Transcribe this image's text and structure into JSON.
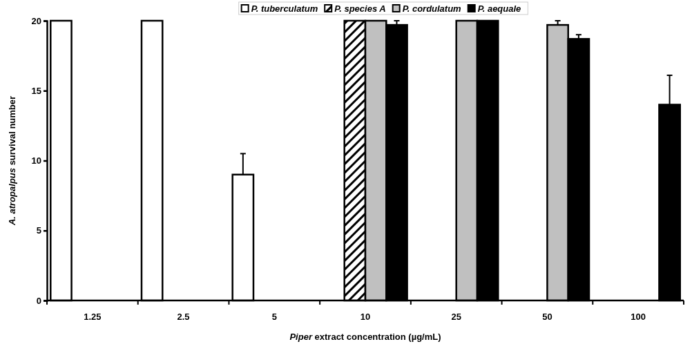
{
  "chart_data": {
    "type": "bar",
    "xlabel": "Piper  extract concentration (µg/mL)",
    "ylabel": "A. atropalpus  survival number",
    "categories": [
      "1.25",
      "2.5",
      "5",
      "10",
      "25",
      "50",
      "100"
    ],
    "series": [
      {
        "name": "P. tuberculatum",
        "color": "#ffffff",
        "values": [
          20,
          20,
          9,
          null,
          null,
          null,
          null
        ],
        "errors": [
          null,
          null,
          1.5,
          null,
          null,
          null,
          null
        ]
      },
      {
        "name": "P. species A",
        "color": "#000000",
        "values": [
          null,
          null,
          null,
          20,
          null,
          null,
          null
        ]
      },
      {
        "name": "P. cordulatum",
        "color": "#c0c0c0",
        "values": [
          null,
          null,
          null,
          20,
          20,
          19.7,
          null
        ],
        "errors": [
          null,
          null,
          null,
          null,
          null,
          0.3,
          null
        ]
      },
      {
        "name": "P. aequale",
        "color": "#000000",
        "values": [
          null,
          null,
          null,
          19.7,
          20,
          18.7,
          14
        ],
        "errors": [
          null,
          null,
          null,
          0.3,
          null,
          0.3,
          2.1
        ]
      }
    ],
    "ylim": [
      0,
      20
    ],
    "yticks": [
      0,
      5,
      10,
      15,
      20
    ],
    "grid": false,
    "legend": "top"
  }
}
